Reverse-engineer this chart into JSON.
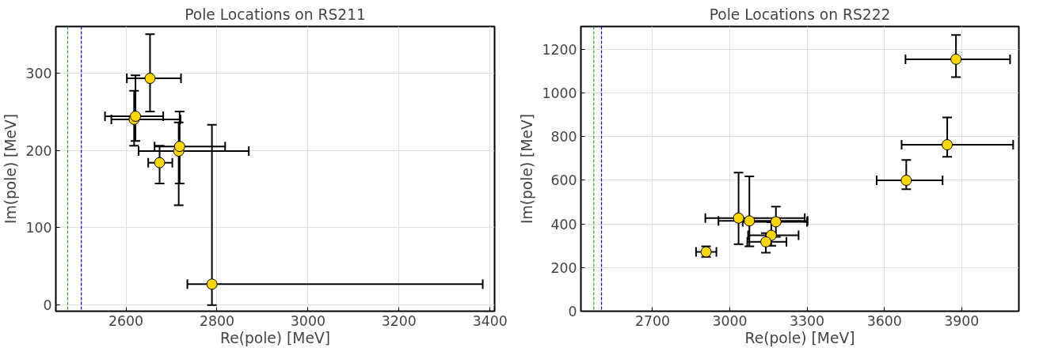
{
  "chart_data": [
    {
      "type": "scatter",
      "title": "Pole Locations on RS211",
      "xlabel": "Re(pole) [MeV]",
      "ylabel": "Im(pole) [MeV]",
      "xlim": [
        2446,
        3410
      ],
      "ylim": [
        -8,
        360
      ],
      "xticks": [
        2600,
        2800,
        3000,
        3200,
        3400
      ],
      "yticks": [
        0,
        100,
        200,
        300
      ],
      "grid": true,
      "marker": "circle",
      "series": [
        {
          "color": "#ffd700",
          "x": [
            2653,
            2618,
            2621,
            2716,
            2718,
            2674,
            2789
          ],
          "values": [
            293,
            240,
            244,
            199,
            205,
            184,
            27
          ],
          "xerrors": [
            [
              2602,
              2721
            ],
            [
              2568,
              2720
            ],
            [
              2554,
              2682
            ],
            [
              2628,
              2870
            ],
            [
              2663,
              2818
            ],
            [
              2649,
              2702
            ],
            [
              2735,
              3384
            ]
          ],
          "errors": [
            [
              250,
              350
            ],
            [
              206,
              277
            ],
            [
              212,
              297
            ],
            [
              129,
              236
            ],
            [
              157,
              250
            ],
            [
              157,
              206
            ],
            [
              0,
              233
            ]
          ]
        }
      ],
      "ref_lines": [
        {
          "axis": "x",
          "value": 2472,
          "color": "#2ca02c",
          "line_style": "dashed"
        },
        {
          "axis": "x",
          "value": 2502,
          "color": "#0000ff",
          "line_style": "dashed"
        }
      ]
    },
    {
      "type": "scatter",
      "title": "Pole Locations on RS222",
      "xlabel": "Re(pole) [MeV]",
      "ylabel": "Im(pole) [MeV]",
      "xlim": [
        2422,
        4122
      ],
      "ylim": [
        0,
        1305
      ],
      "xticks": [
        2700,
        3000,
        3300,
        3600,
        3900
      ],
      "yticks": [
        0,
        200,
        400,
        600,
        800,
        1000,
        1200
      ],
      "grid": true,
      "marker": "circle",
      "series": [
        {
          "color": "#ffd700",
          "x": [
            3878,
            3844,
            3685,
            3034,
            3076,
            3179,
            3161,
            3140,
            2908
          ],
          "values": [
            1155,
            763,
            600,
            427,
            414,
            410,
            348,
            318,
            272
          ],
          "xerrors": [
            [
              3682,
              4088
            ],
            [
              3667,
              4100
            ],
            [
              3570,
              3826
            ],
            [
              2905,
              3291
            ],
            [
              2956,
              3302
            ],
            [
              3050,
              3300
            ],
            [
              3071,
              3267
            ],
            [
              3068,
              3220
            ],
            [
              2869,
              2948
            ]
          ],
          "errors": [
            [
              1073,
              1266
            ],
            [
              708,
              888
            ],
            [
              559,
              693
            ],
            [
              307,
              635
            ],
            [
              297,
              618
            ],
            [
              341,
              479
            ],
            [
              300,
              408
            ],
            [
              268,
              358
            ],
            [
              249,
              297
            ]
          ]
        }
      ],
      "ref_lines": [
        {
          "axis": "x",
          "value": 2472,
          "color": "#2ca02c",
          "line_style": "dashed"
        },
        {
          "axis": "x",
          "value": 2502,
          "color": "#0000ff",
          "line_style": "dashed"
        }
      ]
    }
  ]
}
